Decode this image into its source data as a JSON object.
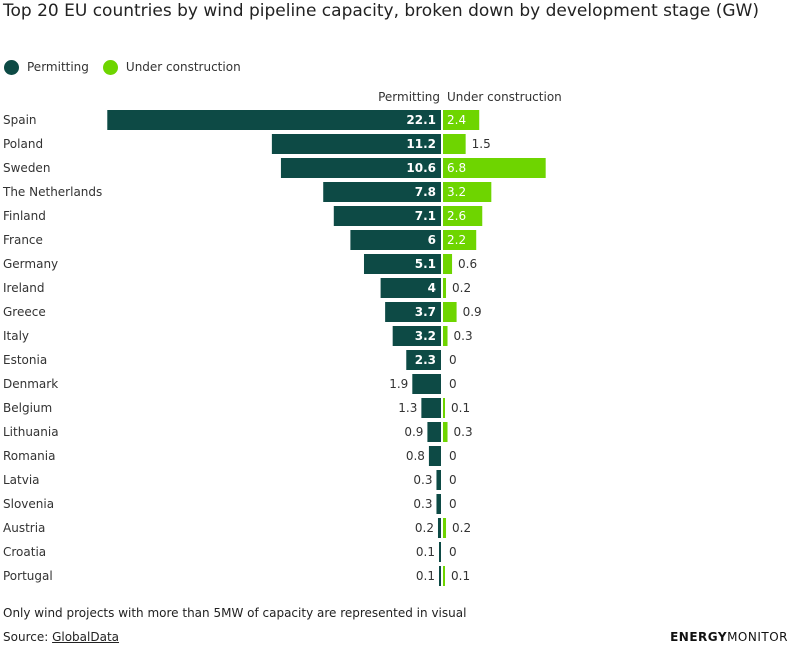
{
  "title": "Top 20 EU countries by wind pipeline capacity, broken down by development stage (GW)",
  "legend": {
    "permitting": "Permitting",
    "under_construction": "Under construction"
  },
  "colors": {
    "permitting": "#0d4a45",
    "under_construction": "#6ed500",
    "label_dark": "#333333",
    "label_light": "#ffffff"
  },
  "note": "Only wind projects with more than 5MW of capacity are represented in visual",
  "source": {
    "prefix": "Source: ",
    "link": "GlobalData"
  },
  "brand": {
    "bold": "ENERGY",
    "light": "MONITOR"
  },
  "chart_data": {
    "type": "bar",
    "categories": [
      "Spain",
      "Poland",
      "Sweden",
      "The Netherlands",
      "Finland",
      "France",
      "Germany",
      "Ireland",
      "Greece",
      "Italy",
      "Estonia",
      "Denmark",
      "Belgium",
      "Lithuania",
      "Romania",
      "Latvia",
      "Slovenia",
      "Austria",
      "Croatia",
      "Portugal"
    ],
    "series": [
      {
        "name": "Permitting",
        "values": [
          22.1,
          11.2,
          10.6,
          7.8,
          7.1,
          6,
          5.1,
          4,
          3.7,
          3.2,
          2.3,
          1.9,
          1.3,
          0.9,
          0.8,
          0.3,
          0.3,
          0.2,
          0.1,
          0.1
        ]
      },
      {
        "name": "Under construction",
        "values": [
          2.4,
          1.5,
          6.8,
          3.2,
          2.6,
          2.2,
          0.6,
          0.2,
          0.9,
          0.3,
          0,
          0,
          0.1,
          0.3,
          0,
          0,
          0,
          0.2,
          0,
          0.1
        ]
      }
    ],
    "column_headers": [
      "Permitting",
      "Under construction"
    ],
    "orientation": "horizontal-diverging"
  }
}
